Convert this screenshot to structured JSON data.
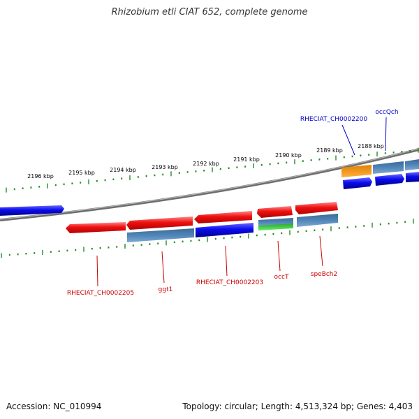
{
  "title": "Rhizobium etli CIAT 652, complete genome",
  "footer": {
    "accession": "Accession: NC_010994",
    "summary": "Topology: circular; Length: 4,513,324 bp; Genes: 4,403"
  },
  "colors": {
    "forward_gene": "#ee1111",
    "reverse_gene": "#0b0bee",
    "cds_steel": "#4f86b8",
    "orange_gene": "#ff9900",
    "green_gene": "#33cc33",
    "tick": "#228b22",
    "backbone": "#8a8a8a",
    "label_red": "#cc0000",
    "label_blue": "#0000cc"
  },
  "scale": {
    "unit": "kbp",
    "labeled_ticks": [
      2196,
      2195,
      2194,
      2193,
      2192,
      2191,
      2190,
      2189,
      2188
    ]
  },
  "genes": [
    {
      "name": "RHECIAT_CH0002205",
      "color": "red"
    },
    {
      "name": "ggt1",
      "color": "red"
    },
    {
      "name": "RHECIAT_CH0002203",
      "color": "red"
    },
    {
      "name": "occT",
      "color": "red"
    },
    {
      "name": "speBch2",
      "color": "red"
    },
    {
      "name": "RHECIAT_CH0002200",
      "color": "blue"
    },
    {
      "name": "occQch",
      "color": "blue"
    }
  ]
}
